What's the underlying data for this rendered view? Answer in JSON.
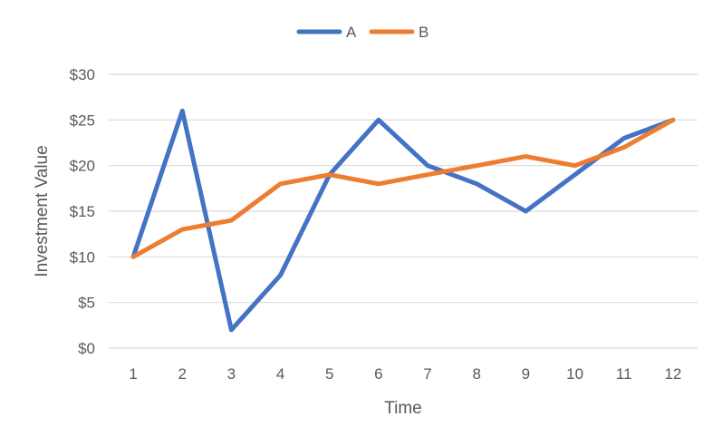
{
  "chart_data": {
    "type": "line",
    "title": "",
    "xlabel": "Time",
    "ylabel": "Investment Value",
    "categories": [
      "1",
      "2",
      "3",
      "4",
      "5",
      "6",
      "7",
      "8",
      "9",
      "10",
      "11",
      "12"
    ],
    "y_ticks": [
      "$0",
      "$5",
      "$10",
      "$15",
      "$20",
      "$25",
      "$30"
    ],
    "ylim": [
      0,
      30
    ],
    "grid": true,
    "legend_position": "top",
    "series": [
      {
        "name": "A",
        "color": "#4472C4",
        "values": [
          10,
          26,
          2,
          8,
          19,
          25,
          20,
          18,
          15,
          19,
          23,
          25
        ]
      },
      {
        "name": "B",
        "color": "#ED7D31",
        "values": [
          10,
          13,
          14,
          18,
          19,
          18,
          19,
          20,
          21,
          20,
          22,
          25
        ]
      }
    ]
  }
}
